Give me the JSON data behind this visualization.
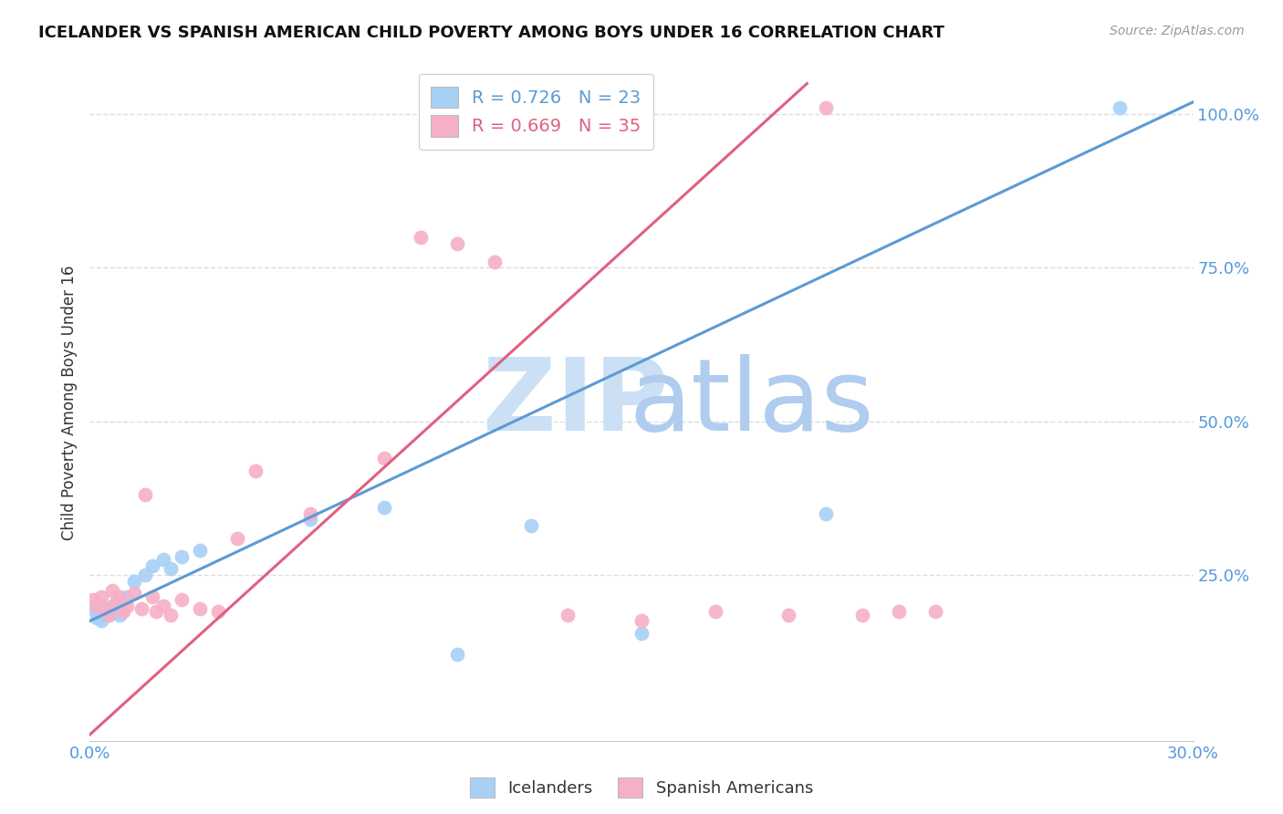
{
  "title": "ICELANDER VS SPANISH AMERICAN CHILD POVERTY AMONG BOYS UNDER 16 CORRELATION CHART",
  "source": "Source: ZipAtlas.com",
  "ylabel": "Child Poverty Among Boys Under 16",
  "xlim": [
    0.0,
    0.3
  ],
  "ylim": [
    -0.02,
    1.08
  ],
  "icelanders_R": 0.726,
  "icelanders_N": 23,
  "spanish_R": 0.669,
  "spanish_N": 35,
  "icelander_color": "#a8d0f5",
  "spanish_color": "#f5b0c5",
  "icelander_line_color": "#5b9bd5",
  "spanish_line_color": "#e06080",
  "watermark_zip_color": "#cce0f5",
  "watermark_atlas_color": "#b0ccee",
  "background_color": "#ffffff",
  "grid_color": "#dddddd",
  "icelanders_x": [
    0.001,
    0.002,
    0.003,
    0.004,
    0.005,
    0.006,
    0.007,
    0.008,
    0.01,
    0.012,
    0.015,
    0.017,
    0.02,
    0.022,
    0.025,
    0.03,
    0.06,
    0.08,
    0.1,
    0.12,
    0.15,
    0.2,
    0.28
  ],
  "icelanders_y": [
    0.195,
    0.18,
    0.175,
    0.19,
    0.185,
    0.2,
    0.19,
    0.185,
    0.215,
    0.24,
    0.25,
    0.265,
    0.275,
    0.26,
    0.28,
    0.29,
    0.34,
    0.36,
    0.12,
    0.33,
    0.155,
    0.35,
    1.01
  ],
  "spanish_x": [
    0.001,
    0.002,
    0.003,
    0.004,
    0.005,
    0.006,
    0.007,
    0.008,
    0.009,
    0.01,
    0.012,
    0.014,
    0.015,
    0.017,
    0.018,
    0.02,
    0.022,
    0.025,
    0.03,
    0.035,
    0.04,
    0.045,
    0.06,
    0.08,
    0.09,
    0.1,
    0.11,
    0.13,
    0.15,
    0.17,
    0.19,
    0.2,
    0.21,
    0.22,
    0.23
  ],
  "spanish_y": [
    0.21,
    0.2,
    0.215,
    0.195,
    0.185,
    0.225,
    0.205,
    0.215,
    0.19,
    0.2,
    0.22,
    0.195,
    0.38,
    0.215,
    0.19,
    0.2,
    0.185,
    0.21,
    0.195,
    0.19,
    0.31,
    0.42,
    0.35,
    0.44,
    0.8,
    0.79,
    0.76,
    0.185,
    0.175,
    0.19,
    0.185,
    1.01,
    0.185,
    0.19,
    0.19
  ],
  "ice_line_x0": 0.0,
  "ice_line_y0": 0.175,
  "ice_line_x1": 0.3,
  "ice_line_y1": 1.02,
  "spa_line_x0": 0.0,
  "spa_line_y0": -0.01,
  "spa_line_x1": 0.195,
  "spa_line_y1": 1.05
}
